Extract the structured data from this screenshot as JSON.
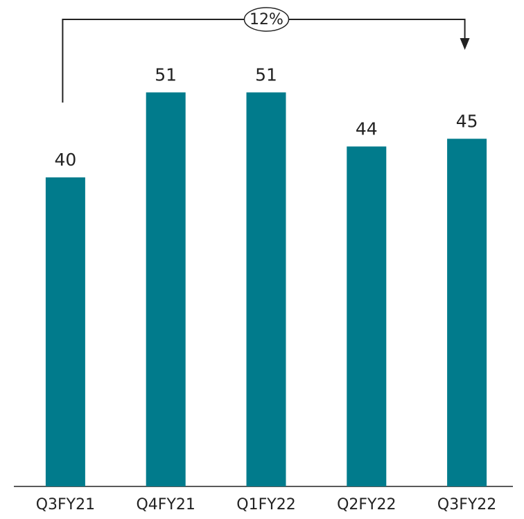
{
  "chart_data": {
    "type": "bar",
    "categories": [
      "Q3FY21",
      "Q4FY21",
      "Q1FY22",
      "Q2FY22",
      "Q3FY22"
    ],
    "values": [
      40,
      51,
      51,
      44,
      45
    ],
    "color": "#017b8c",
    "ylim": [
      0,
      60
    ],
    "annotation": "12%"
  }
}
